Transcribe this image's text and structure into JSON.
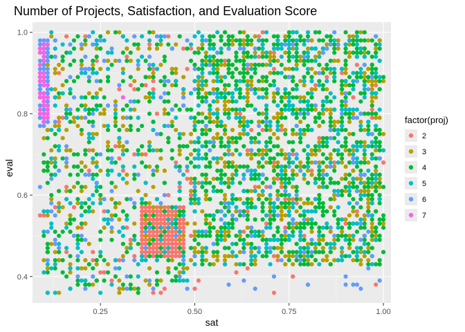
{
  "chart_data": {
    "type": "scatter",
    "title": "Number of Projects, Satisfaction, and Evaluation Score",
    "xlabel": "sat",
    "ylabel": "eval",
    "xlim": [
      0.07,
      1.02
    ],
    "ylim": [
      0.335,
      1.025
    ],
    "x_ticks": [
      0.25,
      0.5,
      0.75,
      1.0
    ],
    "x_tick_labels": [
      "0.25",
      "0.50",
      "0.75",
      "1.00"
    ],
    "y_ticks": [
      0.4,
      0.6,
      0.8,
      1.0
    ],
    "y_tick_labels": [
      "0.4",
      "0.6",
      "0.8",
      "1.0"
    ],
    "grid": true,
    "legend": {
      "title": "factor(proj)",
      "position": "right",
      "entries": [
        {
          "label": "2",
          "color": "#F8766D"
        },
        {
          "label": "3",
          "color": "#B79F00"
        },
        {
          "label": "4",
          "color": "#00BA38"
        },
        {
          "label": "5",
          "color": "#00BFC4"
        },
        {
          "label": "6",
          "color": "#619CFF"
        },
        {
          "label": "7",
          "color": "#F564E3"
        }
      ]
    },
    "series": [
      {
        "name": "2",
        "color": "#F8766D",
        "regions": [
          {
            "x": [
              0.36,
              0.47
            ],
            "y": [
              0.45,
              0.57
            ],
            "step": 0.01,
            "fill": "dense"
          },
          {
            "x": [
              0.12,
              1.0
            ],
            "y": [
              0.36,
              1.0
            ],
            "count": 180
          }
        ],
        "points": [
          [
            0.09,
            0.55
          ],
          [
            0.1,
            0.55
          ]
        ]
      },
      {
        "name": "3",
        "color": "#B79F00",
        "regions": [
          {
            "x": [
              0.49,
              1.0
            ],
            "y": [
              0.43,
              1.0
            ],
            "count": 650
          },
          {
            "x": [
              0.1,
              0.48
            ],
            "y": [
              0.36,
              1.0
            ],
            "count": 230
          }
        ],
        "points": [
          [
            0.1,
            0.68
          ]
        ]
      },
      {
        "name": "4",
        "color": "#00BA38",
        "regions": [
          {
            "x": [
              0.49,
              1.0
            ],
            "y": [
              0.43,
              1.0
            ],
            "count": 900
          },
          {
            "x": [
              0.1,
              0.48
            ],
            "y": [
              0.36,
              1.0
            ],
            "count": 300
          }
        ],
        "points": []
      },
      {
        "name": "5",
        "color": "#00BFC4",
        "regions": [
          {
            "x": [
              0.49,
              1.0
            ],
            "y": [
              0.43,
              1.0
            ],
            "count": 380
          },
          {
            "x": [
              0.1,
              0.48
            ],
            "y": [
              0.36,
              1.0
            ],
            "count": 170
          }
        ],
        "points": []
      },
      {
        "name": "6",
        "color": "#619CFF",
        "regions": [
          {
            "x": [
              0.09,
              0.11
            ],
            "y": [
              0.77,
              0.98
            ],
            "count": 90
          },
          {
            "x": [
              0.1,
              1.0
            ],
            "y": [
              0.36,
              1.0
            ],
            "count": 220
          }
        ],
        "points": [
          [
            0.09,
            0.62
          ]
        ]
      },
      {
        "name": "7",
        "color": "#F564E3",
        "regions": [
          {
            "x": [
              0.09,
              0.11
            ],
            "y": [
              0.78,
              0.97
            ],
            "count": 45
          }
        ],
        "points": [
          [
            0.31,
            0.84
          ]
        ]
      }
    ]
  }
}
